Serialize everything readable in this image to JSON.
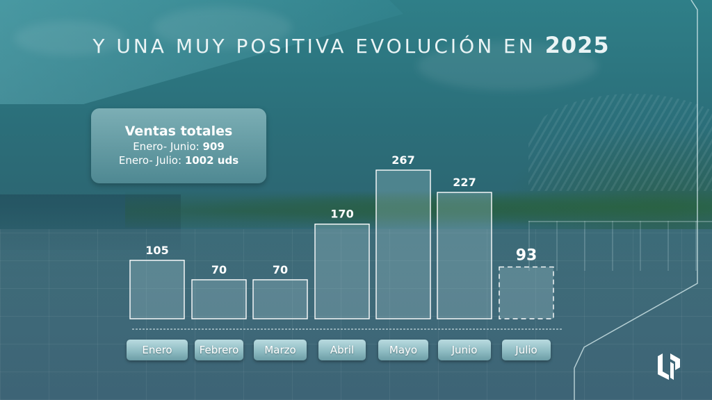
{
  "title": {
    "prefix": "Y UNA MUY POSITIVA EVOLUCIÓN EN",
    "year": "2025"
  },
  "infobox": {
    "heading": "Ventas totales",
    "line1_label": "Enero- Junio:",
    "line1_value": "909",
    "line2_label": "Enero- Julio:",
    "line2_value": "1002 uds"
  },
  "chart_data": {
    "type": "bar",
    "categories": [
      "Enero",
      "Febrero",
      "Marzo",
      "Abril",
      "Mayo",
      "Junio",
      "Julio"
    ],
    "values": [
      105,
      70,
      70,
      170,
      267,
      227,
      93
    ],
    "data_labels": [
      "105",
      "70",
      "70",
      "170",
      "267",
      "227",
      "93"
    ],
    "partial_categories": [
      "Julio"
    ],
    "ylim": [
      0,
      267
    ],
    "grid": false,
    "legend": "none",
    "bar_style": "outlined translucent; Julio dashed outline"
  },
  "logo": {
    "icon": "company-logo-icon"
  }
}
